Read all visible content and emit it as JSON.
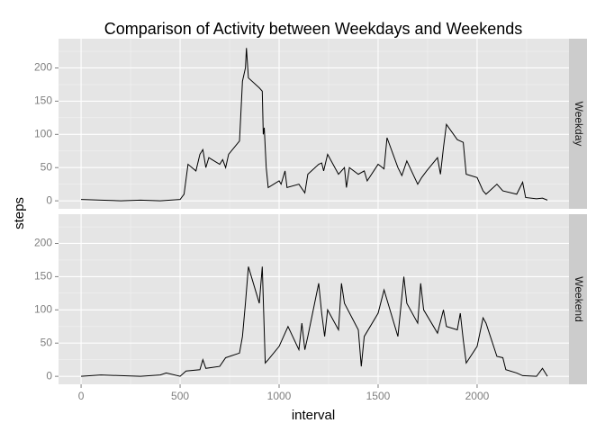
{
  "chart_data": {
    "type": "line",
    "title": "Comparison of Activity between Weekdays and Weekends",
    "x_label": "interval",
    "y_label": "steps",
    "color": "#000000",
    "grid": true,
    "xlim": [
      -114,
      2464
    ],
    "xticks": [
      0,
      500,
      1000,
      1500,
      2000
    ],
    "minor_xticks": [
      250,
      750,
      1250,
      1750,
      2250
    ],
    "ylim": [
      -12,
      244
    ],
    "yticks": [
      0,
      50,
      100,
      150,
      200
    ],
    "minor_yticks": [
      25,
      75,
      125,
      175,
      225
    ],
    "panels": [
      {
        "strip": "Weekday",
        "x": [
          0,
          100,
          200,
          300,
          400,
          500,
          520,
          540,
          560,
          580,
          600,
          615,
          630,
          645,
          700,
          715,
          730,
          745,
          800,
          815,
          830,
          835,
          845,
          900,
          915,
          920,
          925,
          935,
          945,
          1000,
          1010,
          1030,
          1040,
          1100,
          1130,
          1145,
          1200,
          1215,
          1225,
          1245,
          1300,
          1330,
          1340,
          1355,
          1400,
          1430,
          1445,
          1500,
          1530,
          1545,
          1600,
          1620,
          1645,
          1700,
          1720,
          1745,
          1800,
          1815,
          1830,
          1845,
          1900,
          1930,
          1945,
          2000,
          2030,
          2045,
          2100,
          2130,
          2200,
          2230,
          2245,
          2300,
          2330,
          2355
        ],
        "values": [
          2,
          1,
          0,
          1,
          0,
          2,
          10,
          55,
          50,
          45,
          70,
          77,
          50,
          65,
          55,
          62,
          50,
          70,
          90,
          180,
          200,
          230,
          185,
          170,
          165,
          100,
          110,
          50,
          20,
          30,
          25,
          45,
          20,
          25,
          12,
          40,
          55,
          57,
          45,
          70,
          40,
          50,
          20,
          50,
          40,
          45,
          30,
          55,
          48,
          95,
          50,
          38,
          60,
          25,
          35,
          45,
          65,
          40,
          80,
          115,
          92,
          88,
          40,
          35,
          15,
          10,
          25,
          15,
          10,
          28,
          5,
          3,
          4,
          1
        ]
      },
      {
        "strip": "Weekend",
        "x": [
          0,
          100,
          200,
          300,
          400,
          430,
          500,
          530,
          600,
          615,
          630,
          700,
          730,
          800,
          815,
          830,
          845,
          900,
          915,
          930,
          945,
          1000,
          1030,
          1045,
          1100,
          1115,
          1130,
          1145,
          1200,
          1215,
          1230,
          1245,
          1300,
          1315,
          1330,
          1400,
          1415,
          1430,
          1500,
          1530,
          1600,
          1630,
          1645,
          1700,
          1715,
          1730,
          1800,
          1830,
          1845,
          1900,
          1915,
          1930,
          1945,
          2000,
          2030,
          2045,
          2100,
          2130,
          2145,
          2200,
          2230,
          2300,
          2330,
          2355
        ],
        "values": [
          0,
          2,
          1,
          0,
          2,
          5,
          0,
          8,
          10,
          25,
          12,
          15,
          28,
          35,
          60,
          110,
          165,
          110,
          165,
          20,
          25,
          45,
          65,
          75,
          40,
          80,
          40,
          60,
          140,
          95,
          60,
          100,
          70,
          140,
          110,
          70,
          15,
          60,
          95,
          130,
          60,
          150,
          110,
          80,
          140,
          100,
          65,
          100,
          75,
          70,
          95,
          55,
          20,
          45,
          88,
          80,
          30,
          28,
          10,
          5,
          1,
          0,
          12,
          0
        ]
      }
    ]
  }
}
